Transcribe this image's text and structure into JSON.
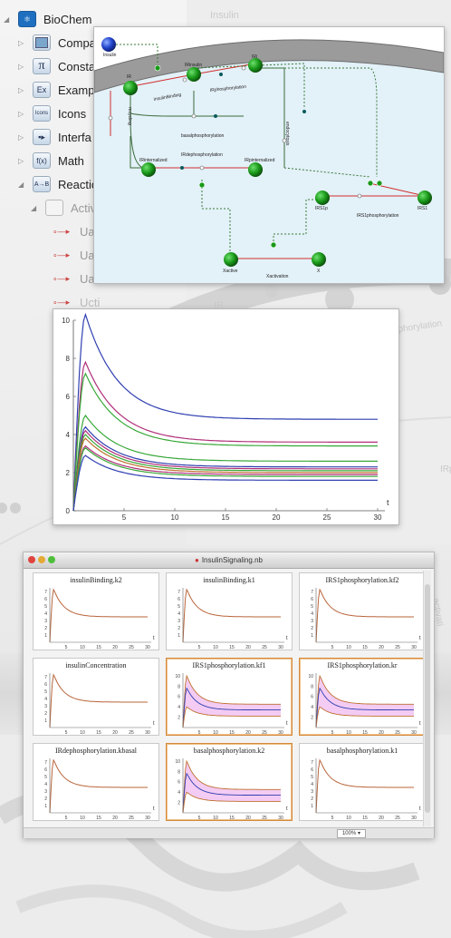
{
  "palette": {
    "title": "BioChem",
    "items": [
      {
        "label": "Compa",
        "icon": "compartment-icon"
      },
      {
        "label": "Consta",
        "icon": "pi-icon",
        "glyph": "π"
      },
      {
        "label": "Examp",
        "icon": "examples-icon",
        "glyph": "Ex"
      },
      {
        "label": "Icons",
        "icon": "icons-icon",
        "glyph": "Icons"
      },
      {
        "label": "Interfa",
        "icon": "interface-icon"
      },
      {
        "label": "Math",
        "icon": "math-icon",
        "glyph": "f(x)"
      },
      {
        "label": "Reactio",
        "icon": "reaction-icon",
        "glyph": "A→B"
      }
    ],
    "subitem": "Activ",
    "subsubitems": [
      "Ua",
      "Ua",
      "Ua",
      "Ucti"
    ]
  },
  "diagram": {
    "species": [
      "Insulin",
      "IR",
      "IRinsulin",
      "IRi",
      "IRinternalized",
      "IRpinternalized",
      "IRS1p",
      "IRS1",
      "Xactive",
      "X"
    ],
    "reactions": [
      "insulinBinding",
      "IRphosphorylation",
      "basalphosphorylation",
      "recycling",
      "endocytosis",
      "IRdephosphorylation",
      "IRS1phosphorylation",
      "Xactivation"
    ]
  },
  "background_labels": [
    "Insulin",
    "IR",
    "phorylation",
    "IRp",
    "activati"
  ],
  "main_plot": {
    "chart_data": {
      "type": "line",
      "xlabel": "t",
      "xlim": [
        0,
        30
      ],
      "ylim": [
        0,
        10
      ],
      "xticks": [
        "5",
        "10",
        "15",
        "20",
        "25",
        "30"
      ],
      "yticks": [
        "0",
        "2",
        "4",
        "6",
        "8",
        "10"
      ],
      "series": [
        {
          "color": "#2f3fb0",
          "peak": 10.3,
          "final": 4.8
        },
        {
          "color": "#b0307a",
          "peak": 7.8,
          "final": 3.6
        },
        {
          "color": "#38a838",
          "peak": 7.2,
          "final": 3.4
        },
        {
          "color": "#38a838",
          "peak": 5.0,
          "final": 2.6
        },
        {
          "color": "#2f3fb0",
          "peak": 4.4,
          "final": 2.3
        },
        {
          "color": "#b0307a",
          "peak": 4.2,
          "final": 2.2
        },
        {
          "color": "#38a838",
          "peak": 4.0,
          "final": 2.1
        },
        {
          "color": "#c07030",
          "peak": 3.8,
          "final": 2.0
        },
        {
          "color": "#b0307a",
          "peak": 3.4,
          "final": 1.9
        },
        {
          "color": "#38a838",
          "peak": 3.3,
          "final": 1.8
        },
        {
          "color": "#2f3fb0",
          "peak": 2.9,
          "final": 1.6
        }
      ]
    }
  },
  "notebook": {
    "title": "InsulinSignaling.nb",
    "zoom": "100%",
    "cells": [
      {
        "title": "insulinBinding.k2",
        "selected": false,
        "band": false
      },
      {
        "title": "insulinBinding.k1",
        "selected": false,
        "band": false
      },
      {
        "title": "IRS1phosphorylation.kf2",
        "selected": false,
        "band": false
      },
      {
        "title": "insulinConcentration",
        "selected": false,
        "band": false
      },
      {
        "title": "IRS1phosphorylation.kf1",
        "selected": true,
        "band": true
      },
      {
        "title": "IRS1phosphorylation.kr",
        "selected": true,
        "band": true
      },
      {
        "title": "IRdephosphorylation.kbasal",
        "selected": false,
        "band": false
      },
      {
        "title": "basalphosphorylation.k2",
        "selected": true,
        "band": true
      },
      {
        "title": "basalphosphorylation.k1",
        "selected": false,
        "band": false
      }
    ],
    "cell_chart_data": {
      "type": "line",
      "xlabel": "t",
      "xlim": [
        0,
        30
      ],
      "ylim": [
        0,
        7.5
      ],
      "xticks": [
        "5",
        "10",
        "15",
        "20",
        "25",
        "30"
      ],
      "yticks_plain": [
        "1",
        "2",
        "3",
        "4",
        "5",
        "6",
        "7"
      ],
      "yticks_band": [
        "2",
        "4",
        "6",
        "8",
        "10"
      ],
      "line_color": "#b8643a",
      "band_color": "#e9a0e9"
    }
  }
}
